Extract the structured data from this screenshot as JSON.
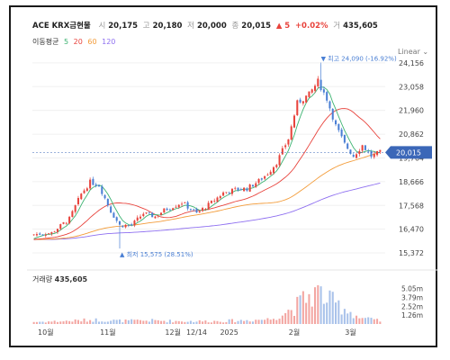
{
  "header": {
    "name": "ACE KRX금현물",
    "open_label": "시",
    "open": "20,175",
    "high_label": "고",
    "high": "20,180",
    "low_label": "저",
    "low": "20,000",
    "close_label": "종",
    "close": "20,015",
    "change": "▲ 5",
    "change_pct": "+0.02%",
    "volume_label": "거",
    "volume": "435,605"
  },
  "ma_legend": {
    "title": "이동평균",
    "items": [
      {
        "label": "5",
        "color": "#3cb371"
      },
      {
        "label": "20",
        "color": "#e8433c"
      },
      {
        "label": "60",
        "color": "#f39c3a"
      },
      {
        "label": "120",
        "color": "#8e6ff0"
      }
    ]
  },
  "scale_toggle": "Linear",
  "volume_panel": {
    "title": "거래량",
    "value": "435,605"
  },
  "colors": {
    "up": "#e8433c",
    "down": "#4a7fd4",
    "price_tag": "#3b67b8"
  },
  "chart_data": {
    "type": "candlestick",
    "price_axis": {
      "ticks": [
        "24,156",
        "23,058",
        "21,960",
        "20,862",
        "19,764",
        "18,666",
        "17,568",
        "16,470",
        "15,372"
      ],
      "ylim": [
        15000,
        24400
      ]
    },
    "volume_axis": {
      "ticks": [
        "5.05m",
        "3.79m",
        "2.52m",
        "1.26m"
      ],
      "ylim": [
        0,
        5400000
      ]
    },
    "x_ticks": [
      {
        "label": "10월",
        "index": 4
      },
      {
        "label": "11월",
        "index": 25
      },
      {
        "label": "12월",
        "index": 47
      },
      {
        "label": "12/14",
        "index": 55
      },
      {
        "label": "2025",
        "index": 66
      },
      {
        "label": "2월",
        "index": 88
      },
      {
        "label": "3월",
        "index": 107
      }
    ],
    "current_price_tag": "20,015",
    "annotations": [
      {
        "text": "최고 24,090 (-16.92%)",
        "index": 97,
        "value": 24090,
        "kind": "high"
      },
      {
        "text": "최저 15,575 (28.51%)",
        "index": 29,
        "value": 15575,
        "kind": "low"
      }
    ],
    "close_anchors": [
      [
        0,
        16230
      ],
      [
        6,
        16300
      ],
      [
        12,
        16950
      ],
      [
        16,
        18100
      ],
      [
        19,
        18650
      ],
      [
        22,
        18500
      ],
      [
        26,
        17300
      ],
      [
        29,
        16650
      ],
      [
        33,
        16650
      ],
      [
        37,
        17200
      ],
      [
        41,
        17050
      ],
      [
        44,
        17350
      ],
      [
        50,
        17700
      ],
      [
        55,
        17200
      ],
      [
        60,
        17700
      ],
      [
        64,
        18150
      ],
      [
        68,
        18300
      ],
      [
        72,
        18350
      ],
      [
        76,
        18700
      ],
      [
        79,
        19050
      ],
      [
        82,
        19550
      ],
      [
        86,
        20650
      ],
      [
        89,
        22300
      ],
      [
        93,
        22700
      ],
      [
        96,
        23300
      ],
      [
        99,
        22500
      ],
      [
        102,
        21250
      ],
      [
        105,
        20400
      ],
      [
        108,
        19850
      ],
      [
        111,
        20350
      ],
      [
        114,
        19850
      ],
      [
        117,
        20015
      ]
    ],
    "volume_anchors": [
      [
        0,
        300000
      ],
      [
        10,
        400000
      ],
      [
        20,
        600000
      ],
      [
        30,
        450000
      ],
      [
        40,
        500000
      ],
      [
        50,
        400000
      ],
      [
        60,
        400000
      ],
      [
        70,
        500000
      ],
      [
        80,
        700000
      ],
      [
        88,
        2300000
      ],
      [
        92,
        3800000
      ],
      [
        96,
        4600000
      ],
      [
        100,
        3300000
      ],
      [
        105,
        2300000
      ],
      [
        110,
        900000
      ],
      [
        117,
        435605
      ]
    ]
  }
}
